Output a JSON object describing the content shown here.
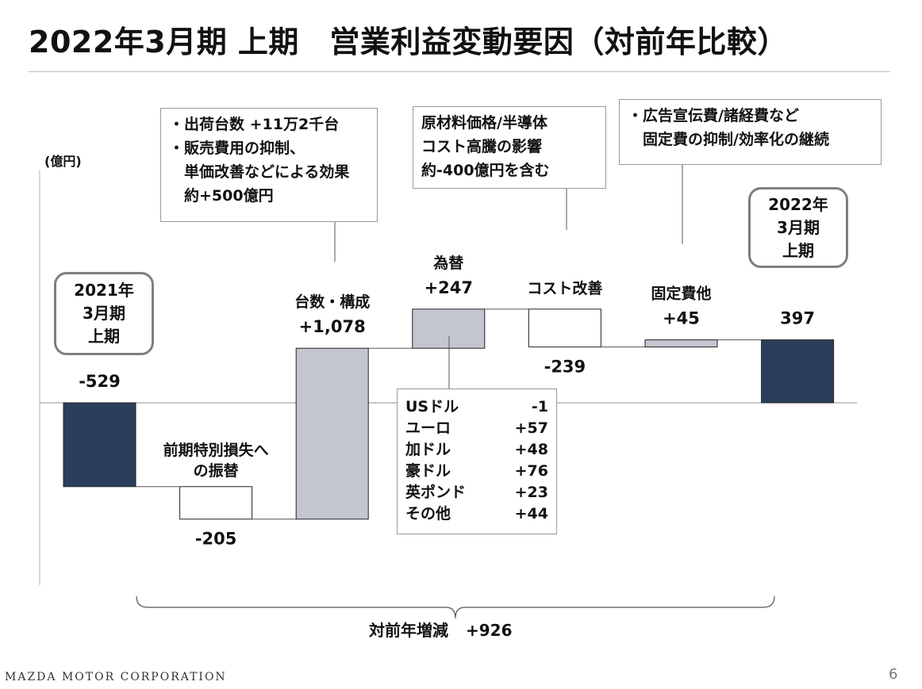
{
  "title": "2022年3月期 上期　営業利益変動要因（対前年比較）",
  "unit_label": "(億円)",
  "footer": {
    "brand": "MAZDA MOTOR CORPORATION",
    "page_number": "6"
  },
  "colors": {
    "endpoint_bar": "#2b3f5c",
    "gray_bar": "#c3c6ce",
    "open_bar": "#ffffff"
  },
  "chart_data": {
    "type": "bar",
    "variant": "waterfall",
    "unit": "億円",
    "baseline": 0,
    "categories": [
      "2021年3月期上期",
      "前期特別損失への振替",
      "台数・構成",
      "為替",
      "コスト改善",
      "固定費他",
      "2022年3月期上期"
    ],
    "steps": [
      {
        "label": "",
        "value": -529,
        "value_label": "-529",
        "kind": "total",
        "label_pos": "above"
      },
      {
        "label": "前期特別損失へ\nの振替",
        "value": -205,
        "value_label": "-205",
        "kind": "decrease",
        "label_pos": "both"
      },
      {
        "label": "台数・構成",
        "value": 1078,
        "value_label": "+1,078",
        "kind": "increase",
        "label_pos": "above"
      },
      {
        "label": "為替",
        "value": 247,
        "value_label": "+247",
        "kind": "increase",
        "label_pos": "above"
      },
      {
        "label": "コスト改善",
        "value": -239,
        "value_label": "-239",
        "kind": "decrease",
        "label_pos": "split"
      },
      {
        "label": "固定費他",
        "value": 45,
        "value_label": "+45",
        "kind": "increase",
        "label_pos": "above"
      },
      {
        "label": "",
        "value": 397,
        "value_label": "397",
        "kind": "total",
        "label_pos": "above"
      }
    ],
    "period_boxes": [
      {
        "lines": [
          "2021年",
          "3月期",
          "上期"
        ]
      },
      {
        "lines": [
          "2022年",
          "3月期",
          "上期"
        ]
      }
    ],
    "total_change": {
      "label": "対前年増減",
      "value": "+926"
    },
    "annotations": {
      "volume_mix": [
        "・出荷台数 +11万2千台",
        "・販売費用の抑制、",
        "　単価改善などによる効果",
        "　約+500億円"
      ],
      "cost": [
        "原材料価格/半導体",
        "コスト高騰の影響",
        "約-400億円を含む"
      ],
      "fixed": [
        "・広告宣伝費/諸経費など",
        "　固定費の抑制/効率化の継続"
      ]
    },
    "fx_breakdown": [
      {
        "currency": "USドル",
        "value": "-1"
      },
      {
        "currency": "ユーロ",
        "value": "+57"
      },
      {
        "currency": "加ドル",
        "value": "+48"
      },
      {
        "currency": "豪ドル",
        "value": "+76"
      },
      {
        "currency": "英ポンド",
        "value": "+23"
      },
      {
        "currency": "その他",
        "value": "+44"
      }
    ]
  }
}
